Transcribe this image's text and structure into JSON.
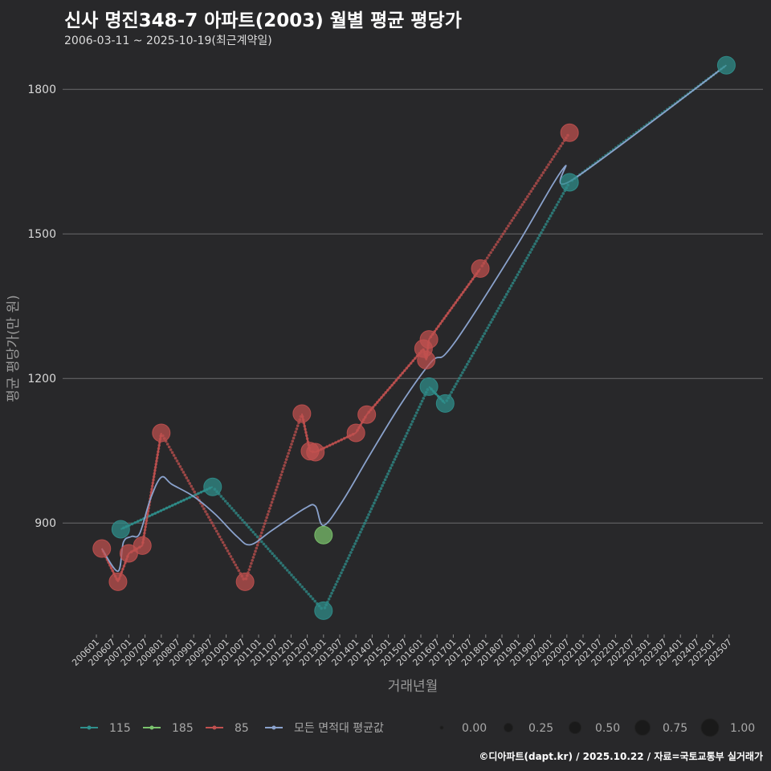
{
  "title": "신사 명진348-7 아파트(2003) 월별 평균 평당가",
  "subtitle": "2006-03-11 ~ 2025-10-19(최근계약일)",
  "footer": "©디아파트(dapt.kr) / 2025.10.22 / 자료=국토교통부 실거래가",
  "chart_data": {
    "type": "scatter",
    "xlabel": "거래년월",
    "ylabel": "평균 평당가(만 원)",
    "ylim": [
      672,
      1852
    ],
    "y_ticks": [
      900,
      1200,
      1500,
      1800
    ],
    "x_ticks": [
      "200601",
      "200607",
      "200701",
      "200707",
      "200801",
      "200807",
      "200901",
      "200907",
      "201001",
      "201007",
      "201101",
      "201107",
      "201201",
      "201207",
      "201301",
      "201307",
      "201401",
      "201407",
      "201501",
      "201507",
      "201601",
      "201607",
      "201701",
      "201707",
      "201801",
      "201807",
      "201901",
      "201907",
      "202001",
      "202007",
      "202101",
      "202107",
      "202201",
      "202207",
      "202301",
      "202307",
      "202401",
      "202407",
      "202501",
      "202507"
    ],
    "series": [
      {
        "name": "115",
        "color": "#2f8f8c",
        "points": [
          {
            "date": "2006-10",
            "value": 887
          },
          {
            "date": "2009-08",
            "value": 975
          },
          {
            "date": "2013-01",
            "value": 718
          },
          {
            "date": "2016-04",
            "value": 1183
          },
          {
            "date": "2016-10",
            "value": 1148
          },
          {
            "date": "2020-08",
            "value": 1607
          },
          {
            "date": "2025-06",
            "value": 1850
          }
        ]
      },
      {
        "name": "185",
        "color": "#7bc46d",
        "points": [
          {
            "date": "2013-01",
            "value": 875
          }
        ]
      },
      {
        "name": "85",
        "color": "#c0504f",
        "points": [
          {
            "date": "2006-03",
            "value": 847
          },
          {
            "date": "2006-09",
            "value": 778
          },
          {
            "date": "2007-01",
            "value": 837
          },
          {
            "date": "2007-06",
            "value": 853
          },
          {
            "date": "2008-01",
            "value": 1087
          },
          {
            "date": "2010-08",
            "value": 778
          },
          {
            "date": "2012-05",
            "value": 1127
          },
          {
            "date": "2012-08",
            "value": 1049
          },
          {
            "date": "2012-10",
            "value": 1047
          },
          {
            "date": "2014-01",
            "value": 1087
          },
          {
            "date": "2014-05",
            "value": 1125
          },
          {
            "date": "2016-02",
            "value": 1262
          },
          {
            "date": "2016-03",
            "value": 1238
          },
          {
            "date": "2016-04",
            "value": 1281
          },
          {
            "date": "2017-11",
            "value": 1428
          },
          {
            "date": "2020-08",
            "value": 1710
          }
        ]
      }
    ],
    "overall_series": {
      "name": "모든 면적대 평균값",
      "color": "#8aa2cc",
      "points": [
        {
          "date": "2006-03",
          "value": 847
        },
        {
          "date": "2006-09",
          "value": 800
        },
        {
          "date": "2006-11",
          "value": 860
        },
        {
          "date": "2007-02",
          "value": 872
        },
        {
          "date": "2007-05",
          "value": 878
        },
        {
          "date": "2007-09",
          "value": 950
        },
        {
          "date": "2008-01",
          "value": 995
        },
        {
          "date": "2008-05",
          "value": 980
        },
        {
          "date": "2009-01",
          "value": 955
        },
        {
          "date": "2009-09",
          "value": 918
        },
        {
          "date": "2010-05",
          "value": 872
        },
        {
          "date": "2010-10",
          "value": 855
        },
        {
          "date": "2011-06",
          "value": 885
        },
        {
          "date": "2012-06",
          "value": 930
        },
        {
          "date": "2012-10",
          "value": 935
        },
        {
          "date": "2013-01",
          "value": 895
        },
        {
          "date": "2013-08",
          "value": 945
        },
        {
          "date": "2014-06",
          "value": 1040
        },
        {
          "date": "2015-06",
          "value": 1150
        },
        {
          "date": "2016-05",
          "value": 1235
        },
        {
          "date": "2016-10",
          "value": 1250
        },
        {
          "date": "2017-07",
          "value": 1320
        },
        {
          "date": "2019-01",
          "value": 1480
        },
        {
          "date": "2020-06",
          "value": 1638
        },
        {
          "date": "2020-09",
          "value": 1612
        },
        {
          "date": "2025-06",
          "value": 1850
        }
      ]
    },
    "legend": {
      "series_labels": [
        "115",
        "185",
        "85",
        "모든 면적대 평균값"
      ],
      "size_labels": [
        "0.00",
        "0.25",
        "0.50",
        "0.75",
        "1.00"
      ],
      "position": "bottom"
    }
  }
}
